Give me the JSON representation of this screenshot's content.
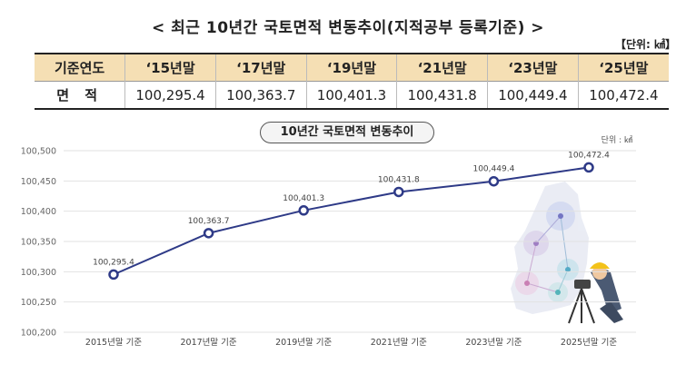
{
  "header": {
    "title": "< 최근 10년간 국토면적 변동추이(지적공부 등록기준) >",
    "unit": "【단위: ㎢】"
  },
  "table": {
    "row_label_year": "기준연도",
    "row_label_area": "면 적",
    "years": [
      "‘15년말",
      "‘17년말",
      "‘19년말",
      "‘21년말",
      "‘23년말",
      "‘25년말"
    ],
    "areas": [
      "100,295.4",
      "100,363.7",
      "100,401.3",
      "100,431.8",
      "100,449.4",
      "100,472.4"
    ]
  },
  "chart_data": {
    "type": "line",
    "title": "10년간 국토면적 변동추이",
    "unit_label": "단위 : ㎢",
    "categories": [
      "2015년말 기준",
      "2017년말 기준",
      "2019년말 기준",
      "2021년말 기준",
      "2023년말 기준",
      "2025년말 기준"
    ],
    "values": [
      100295.4,
      100363.7,
      100401.3,
      100431.8,
      100449.4,
      100472.4
    ],
    "data_labels": [
      "100,295.4",
      "100,363.7",
      "100,401.3",
      "100,431.8",
      "100,449.4",
      "100,472.4"
    ],
    "ylim": [
      100200,
      100500
    ],
    "yticks": [
      100200,
      100250,
      100300,
      100350,
      100400,
      100450,
      100500
    ],
    "ytick_labels": [
      "100,200",
      "100,250",
      "100,300",
      "100,350",
      "100,400",
      "100,450",
      "100,500"
    ],
    "grid": true,
    "line_color": "#2e3a87",
    "marker_fill": "#ffffff"
  },
  "colors": {
    "table_header_bg": "#f5dfb4",
    "grid_line": "#e2e2e2"
  }
}
